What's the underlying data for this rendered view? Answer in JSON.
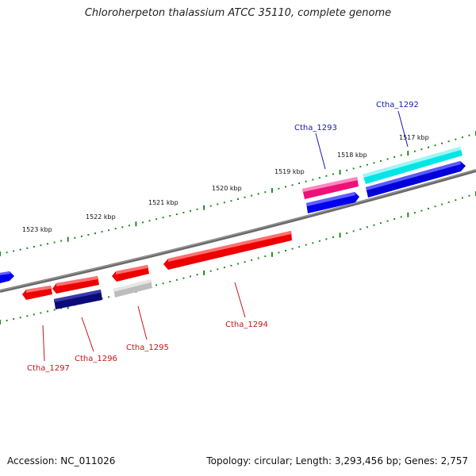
{
  "title": "Chloroherpeton thalassium ATCC 35110, complete genome",
  "footer": {
    "accession": "Accession: NC_011026",
    "topology": "Topology: circular; Length: 3,293,456 bp; Genes: 2,757"
  },
  "colors": {
    "backbone": "#808080",
    "tick": "#1f8a1f",
    "forward_label": "#1a1aa8",
    "reverse_label": "#c81414"
  },
  "ticks": [
    "1517 kbp",
    "1518 kbp",
    "1519 kbp",
    "1520 kbp",
    "1521 kbp",
    "1522 kbp",
    "1523 kbp"
  ],
  "genes": [
    {
      "name": "Ctha_1292",
      "strand": "forward",
      "color": "#0000cc",
      "cds_color": "#00e6e6"
    },
    {
      "name": "Ctha_1293",
      "strand": "forward",
      "color": "#0000ee",
      "cds_color": "#ee1177"
    },
    {
      "name": "Ctha_1294",
      "strand": "reverse",
      "color": "#ee0000"
    },
    {
      "name": "Ctha_1295",
      "strand": "reverse",
      "color": "#ee0000",
      "cds_color": "#bdbdbd"
    },
    {
      "name": "Ctha_1296",
      "strand": "reverse",
      "color": "#ee0000",
      "cds_color": "#0a0a7a"
    },
    {
      "name": "Ctha_1297",
      "strand": "reverse",
      "color": "#ee0000"
    }
  ]
}
